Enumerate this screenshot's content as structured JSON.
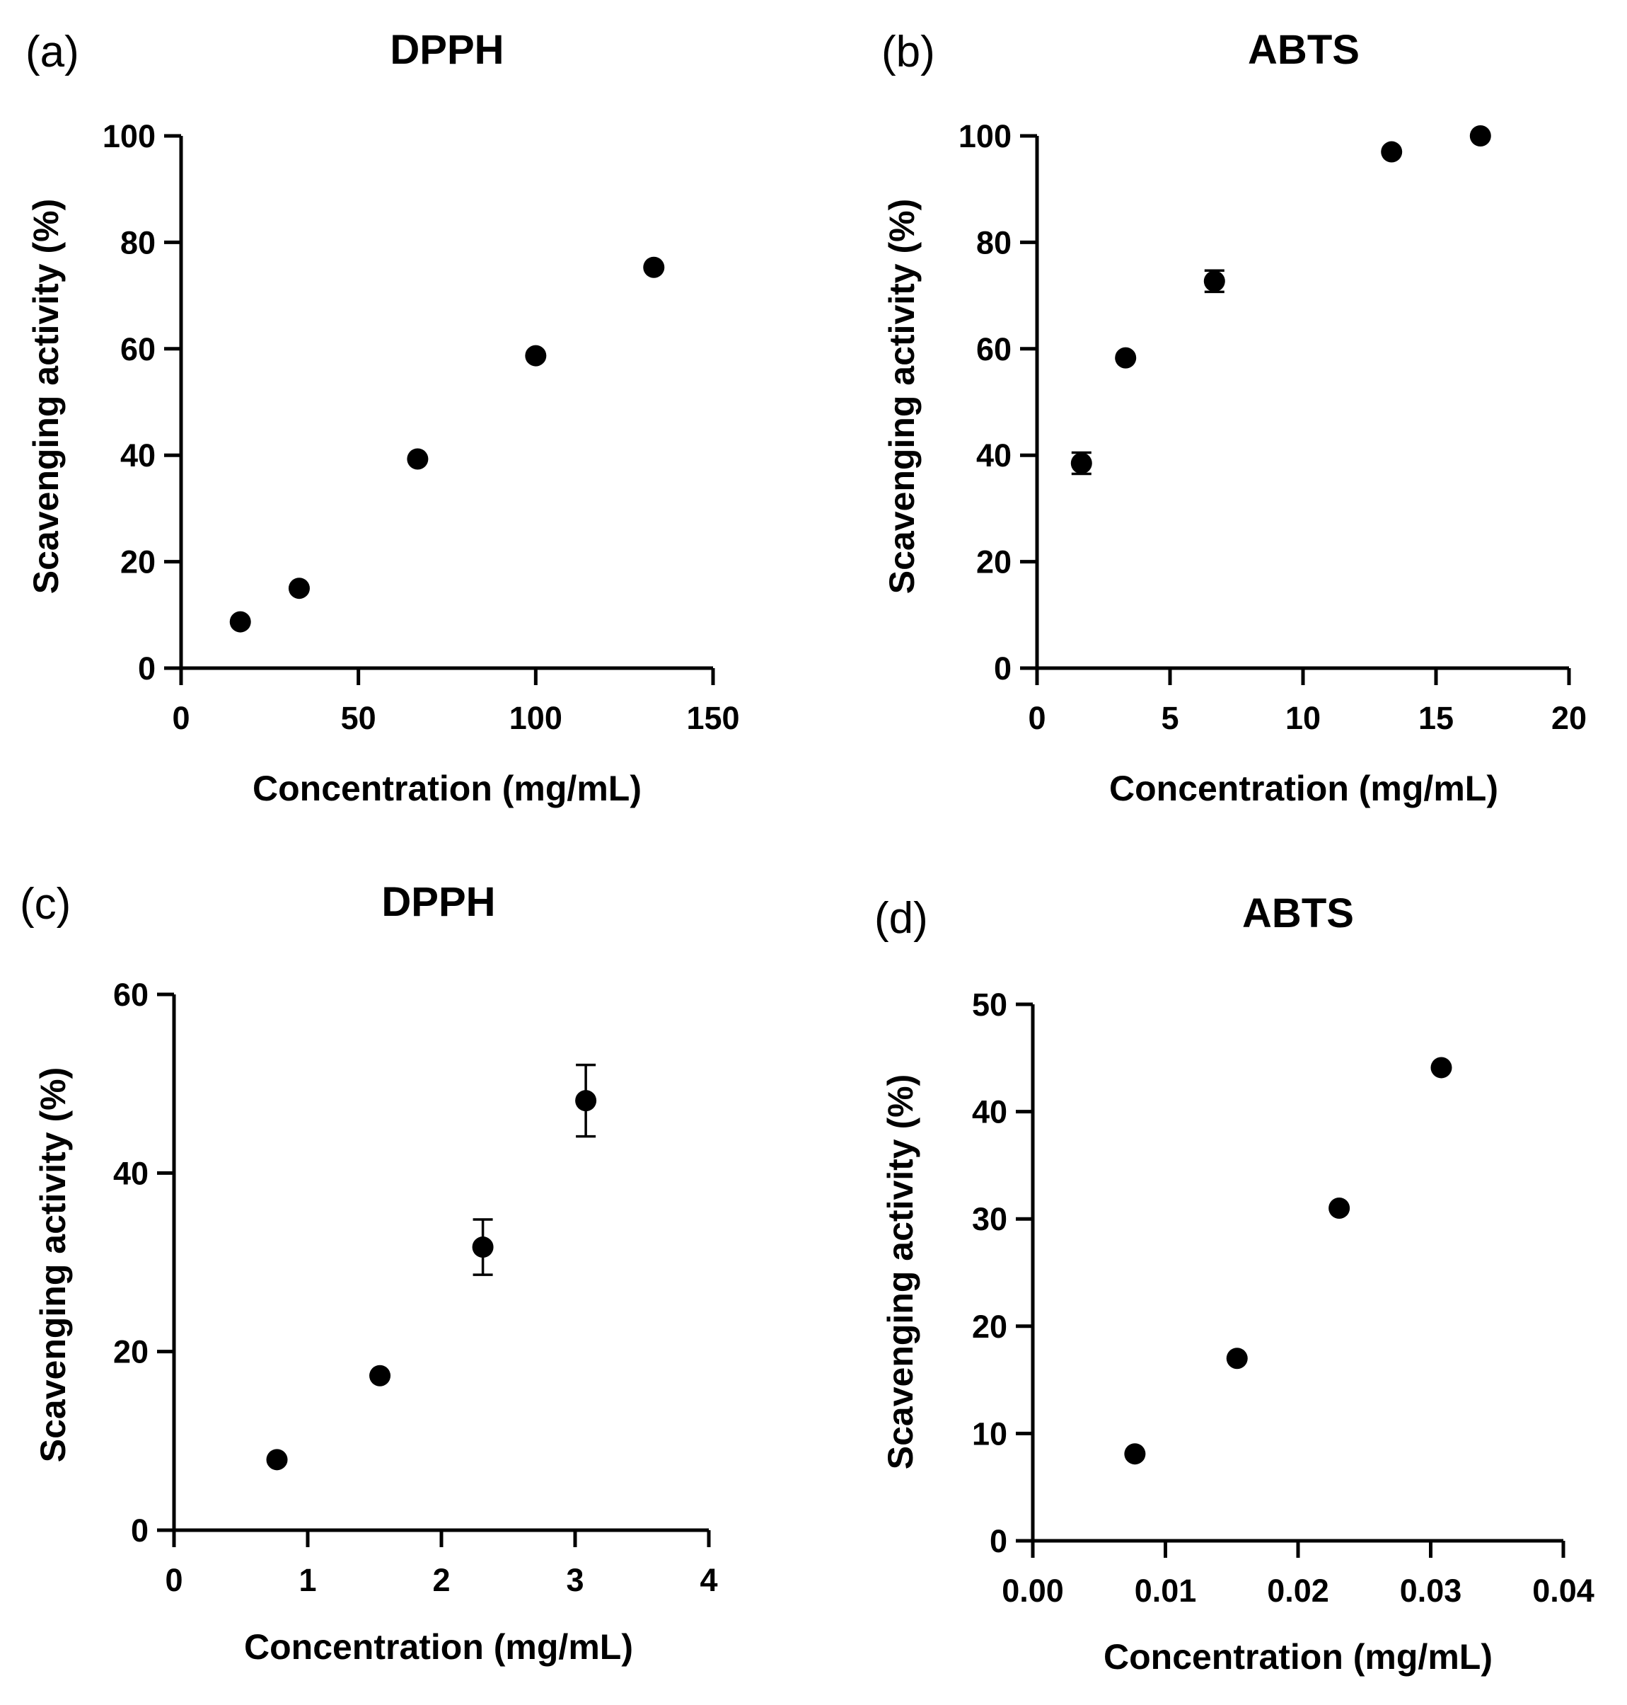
{
  "chart_data": [
    {
      "type": "scatter",
      "panel": "(a)",
      "title": "DPPH",
      "xlabel": "Concentration (mg/mL)",
      "ylabel": "Scavenging activity (%)",
      "xlim": [
        0,
        150
      ],
      "ylim": [
        0,
        100
      ],
      "xticks": [
        0,
        50,
        100,
        150
      ],
      "xtick_labels": [
        "0",
        "50",
        "100",
        "150"
      ],
      "yticks": [
        0,
        20,
        40,
        60,
        80,
        100
      ],
      "ytick_labels": [
        "0",
        "20",
        "40",
        "60",
        "80",
        "100"
      ],
      "points": [
        {
          "x": 16.7,
          "y": 8.7,
          "err": 0
        },
        {
          "x": 33.3,
          "y": 15.0,
          "err": 0
        },
        {
          "x": 66.7,
          "y": 39.3,
          "err": 0
        },
        {
          "x": 100,
          "y": 58.7,
          "err": 0
        },
        {
          "x": 133.3,
          "y": 75.3,
          "err": 0
        }
      ]
    },
    {
      "type": "scatter",
      "panel": "(b)",
      "title": "ABTS",
      "xlabel": "Concentration (mg/mL)",
      "ylabel": "Scavenging activity (%)",
      "xlim": [
        0,
        20
      ],
      "ylim": [
        0,
        100
      ],
      "xticks": [
        0,
        5,
        10,
        15,
        20
      ],
      "xtick_labels": [
        "0",
        "5",
        "10",
        "15",
        "20"
      ],
      "yticks": [
        0,
        20,
        40,
        60,
        80,
        100
      ],
      "ytick_labels": [
        "0",
        "20",
        "40",
        "60",
        "80",
        "100"
      ],
      "points": [
        {
          "x": 1.67,
          "y": 38.5,
          "err": 2.0
        },
        {
          "x": 3.33,
          "y": 58.3,
          "err": 0
        },
        {
          "x": 6.67,
          "y": 72.7,
          "err": 2.0
        },
        {
          "x": 13.33,
          "y": 97.0,
          "err": 0
        },
        {
          "x": 16.67,
          "y": 100.0,
          "err": 0
        }
      ]
    },
    {
      "type": "scatter",
      "panel": "(c)",
      "title": "DPPH",
      "xlabel": "Concentration (mg/mL)",
      "ylabel": "Scavenging activity (%)",
      "xlim": [
        0,
        4
      ],
      "ylim": [
        0,
        60
      ],
      "xticks": [
        0,
        1,
        2,
        3,
        4
      ],
      "xtick_labels": [
        "0",
        "1",
        "2",
        "3",
        "4"
      ],
      "yticks": [
        0,
        20,
        40,
        60
      ],
      "ytick_labels": [
        "0",
        "20",
        "40",
        "60"
      ],
      "points": [
        {
          "x": 0.77,
          "y": 7.9,
          "err": 0
        },
        {
          "x": 1.54,
          "y": 17.3,
          "err": 0
        },
        {
          "x": 2.31,
          "y": 31.7,
          "err": 3.1
        },
        {
          "x": 3.08,
          "y": 48.1,
          "err": 4.0
        }
      ]
    },
    {
      "type": "scatter",
      "panel": "(d)",
      "title": "ABTS",
      "xlabel": "Concentration (mg/mL)",
      "ylabel": "Scavenging activity (%)",
      "xlim": [
        0,
        0.04
      ],
      "ylim": [
        0,
        50
      ],
      "xticks": [
        0,
        0.01,
        0.02,
        0.03,
        0.04
      ],
      "xtick_labels": [
        "0.00",
        "0.01",
        "0.02",
        "0.03",
        "0.04"
      ],
      "yticks": [
        0,
        10,
        20,
        30,
        40,
        50
      ],
      "ytick_labels": [
        "0",
        "10",
        "20",
        "30",
        "40",
        "50"
      ],
      "points": [
        {
          "x": 0.0077,
          "y": 8.1,
          "err": 0
        },
        {
          "x": 0.0154,
          "y": 17.0,
          "err": 0
        },
        {
          "x": 0.0231,
          "y": 31.0,
          "err": 0
        },
        {
          "x": 0.0308,
          "y": 44.1,
          "err": 0
        }
      ]
    }
  ]
}
